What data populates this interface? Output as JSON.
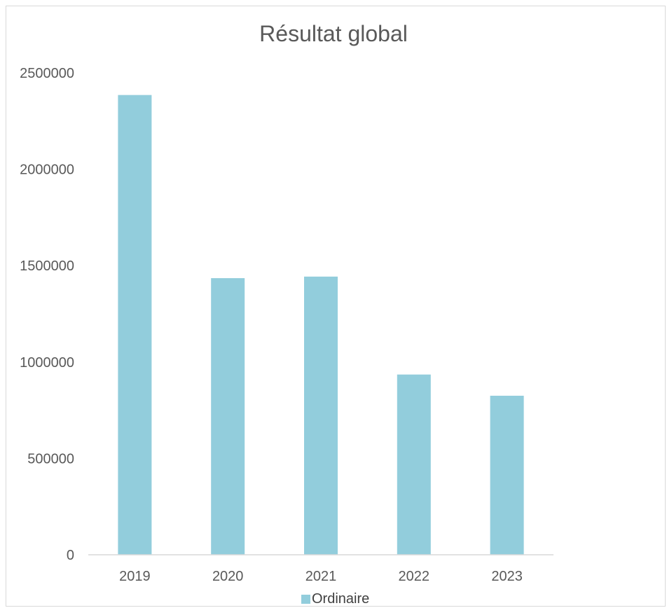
{
  "chart_data": {
    "type": "bar",
    "title": "Résultat global",
    "categories": [
      "2019",
      "2020",
      "2021",
      "2022",
      "2023"
    ],
    "series": [
      {
        "name": "Ordinaire",
        "values": [
          2385000,
          1435000,
          1443000,
          935000,
          825000
        ]
      }
    ],
    "yticks": [
      "0",
      "500000",
      "1000000",
      "1500000",
      "2000000",
      "2500000"
    ],
    "ylim": [
      0,
      2500000
    ],
    "grid": false,
    "legend_position": "bottom",
    "colors": {
      "series": "#92cddc",
      "axis": "#d9d9d9",
      "text": "#595959"
    }
  }
}
